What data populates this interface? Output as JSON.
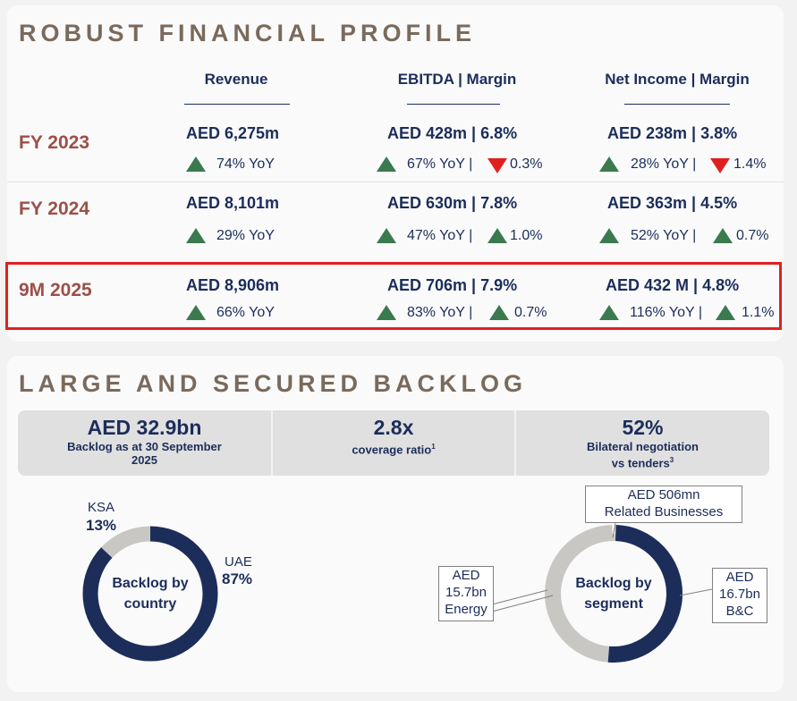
{
  "financial_profile": {
    "title": "ROBUST FINANCIAL PROFILE",
    "columns": [
      "Revenue",
      "EBITDA | Margin",
      "Net Income | Margin"
    ],
    "rows": [
      {
        "label": "FY 2023",
        "revenue": "AED 6,275m",
        "revenue_yoy": "74% YoY",
        "ebitda": "AED 428m | 6.8%",
        "ebitda_yoy": "67% YoY |",
        "ebitda_margin_change": "0.3%",
        "ebitda_margin_direction": "down",
        "net": "AED 238m | 3.8%",
        "net_yoy": "28% YoY |",
        "net_margin_change": "1.4%",
        "net_margin_direction": "down"
      },
      {
        "label": "FY 2024",
        "revenue": "AED 8,101m",
        "revenue_yoy": "29% YoY",
        "ebitda": "AED 630m | 7.8%",
        "ebitda_yoy": "47% YoY |",
        "ebitda_margin_change": "1.0%",
        "ebitda_margin_direction": "up",
        "net": "AED 363m | 4.5%",
        "net_yoy": "52% YoY |",
        "net_margin_change": "0.7%",
        "net_margin_direction": "up"
      },
      {
        "label": "9M 2025",
        "revenue": "AED 8,906m",
        "revenue_yoy": "66% YoY",
        "ebitda": "AED 706m | 7.9%",
        "ebitda_yoy": "83% YoY |",
        "ebitda_margin_change": "0.7%",
        "ebitda_margin_direction": "up",
        "net": "AED 432 M | 4.8%",
        "net_yoy": "116% YoY |",
        "net_margin_change": "1.1%",
        "net_margin_direction": "up"
      }
    ]
  },
  "backlog": {
    "title": "LARGE AND SECURED BACKLOG",
    "kpis": [
      {
        "value": "AED 32.9bn",
        "caption_line1": "Backlog as at 30 September",
        "caption_line2": "2025"
      },
      {
        "value": "2.8x",
        "caption_line1": "coverage ratio",
        "caption_sup": "1"
      },
      {
        "value": "52%",
        "caption_line1": "Bilateral negotiation",
        "caption_line2": "vs tenders",
        "caption_sup": "3"
      }
    ],
    "country_donut": {
      "center_line1": "Backlog by",
      "center_line2": "country",
      "ksa_label": "KSA",
      "ksa_pct": "13%",
      "ksa_value": 13,
      "uae_label": "UAE",
      "uae_pct": "87%",
      "uae_value": 87
    },
    "segment_donut": {
      "center_line1": "Backlog by",
      "center_line2": "segment",
      "related_line1": "AED 506mn",
      "related_line2": "Related Businesses",
      "energy_line1": "AED",
      "energy_line2": "15.7bn",
      "energy_line3": "Energy",
      "bc_line1": "AED",
      "bc_line2": "16.7bn",
      "bc_line3": "B&C"
    }
  },
  "colors": {
    "navy": "#1c2d5a",
    "grey": "#c9c7c4",
    "green": "#3b7a4e",
    "red": "#e02020",
    "title": "#7a6a5c",
    "row_label": "#9b5048"
  }
}
